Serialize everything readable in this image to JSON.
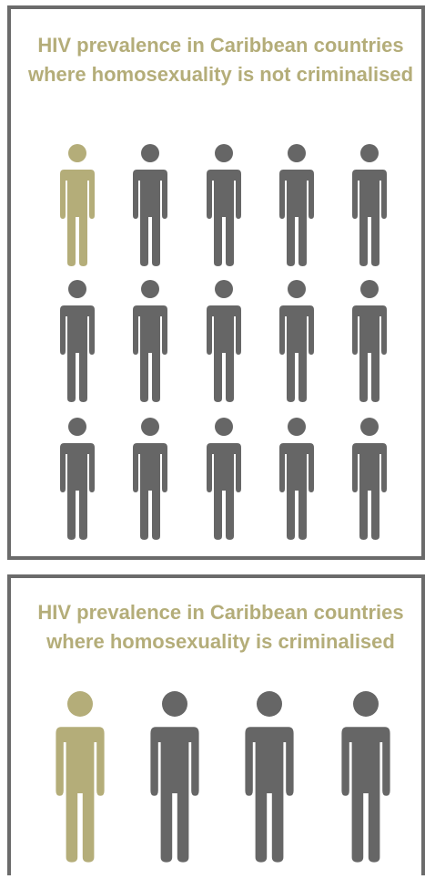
{
  "chart_data": [
    {
      "type": "pictogram",
      "title": "HIV prevalence in Caribbean countries where homosexuality is not criminalised",
      "highlighted": 1,
      "total": 15
    },
    {
      "type": "pictogram",
      "title": "HIV prevalence in Caribbean countries where homosexuality is criminalised",
      "highlighted": 1,
      "total": 4
    }
  ],
  "colors": {
    "highlight": "#b4ad79",
    "base": "#666666",
    "border": "#6b6b6b"
  },
  "icon": "person-icon"
}
